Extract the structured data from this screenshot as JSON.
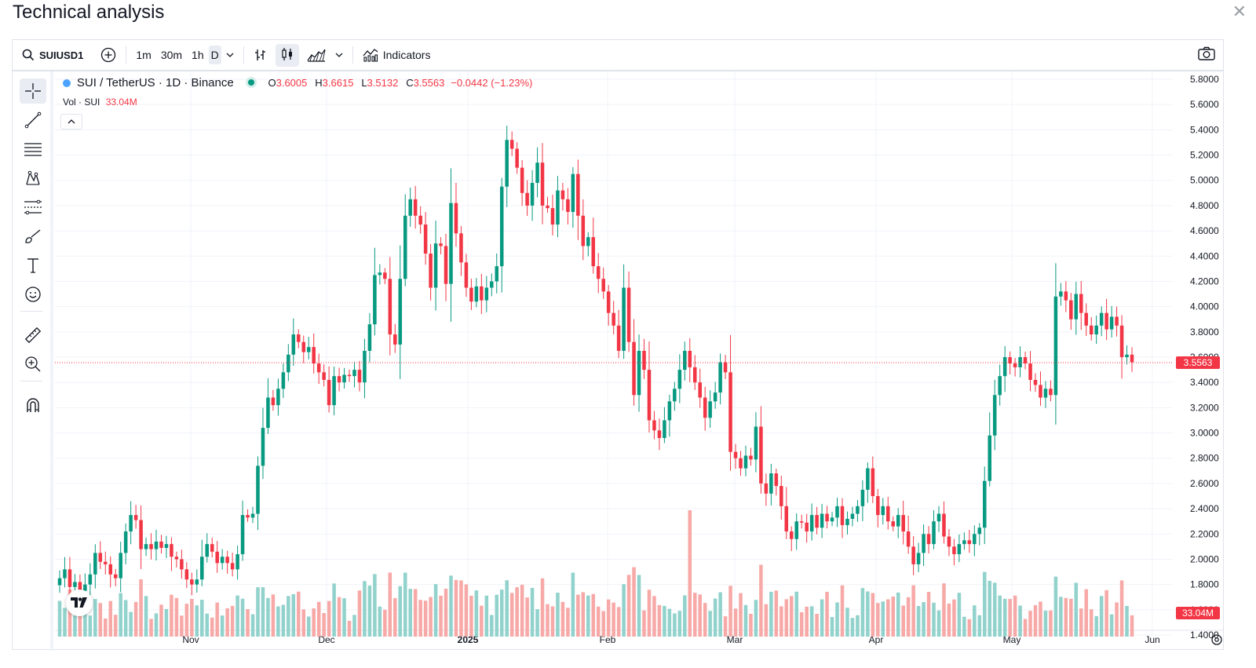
{
  "page": {
    "title": "Technical analysis"
  },
  "toolbar": {
    "symbol": "SUIUSD1",
    "intervals": [
      "1m",
      "30m",
      "1h",
      "D"
    ],
    "indicators_label": "Indicators"
  },
  "legend": {
    "pair": "SUI / TetherUS · 1D · Binance",
    "o_label": "O",
    "open": "3.6005",
    "h_label": "H",
    "high": "3.6615",
    "l_label": "L",
    "low": "3.5132",
    "c_label": "C",
    "close": "3.5563",
    "change": "−0.0442 (−1.23%)",
    "vol_label": "Vol · SUI",
    "vol_value": "33.04M"
  },
  "price_scale": {
    "ticks": [
      "5.8000",
      "5.6000",
      "5.4000",
      "5.2000",
      "5.0000",
      "4.8000",
      "4.6000",
      "4.4000",
      "4.2000",
      "4.0000",
      "3.8000",
      "3.6000",
      "3.4000",
      "3.2000",
      "3.0000",
      "2.8000",
      "2.6000",
      "2.4000",
      "2.2000",
      "2.0000",
      "1.8000",
      "1.6000",
      "1.4000"
    ],
    "current_price_label": "3.5563",
    "current_volume_label": "33.04M"
  },
  "time_scale": {
    "labels": [
      "Nov",
      "Dec",
      "2025",
      "Feb",
      "Mar",
      "Apr",
      "May",
      "Jun"
    ]
  },
  "colors": {
    "up": "#089981",
    "down": "#f23645",
    "up_vol": "#92d2cc",
    "down_vol": "#f7a9a7",
    "grid": "#f0f3fa"
  },
  "chart_data": {
    "type": "candlestick",
    "symbol": "SUIUSD1",
    "interval": "1D",
    "ylim": [
      1.4,
      5.8
    ],
    "closes": [
      1.85,
      1.92,
      1.78,
      1.82,
      1.75,
      1.8,
      1.88,
      2.05,
      1.98,
      1.96,
      1.88,
      1.85,
      2.05,
      2.22,
      2.35,
      2.31,
      2.08,
      2.12,
      2.08,
      2.14,
      2.09,
      2.12,
      2.02,
      2.0,
      1.92,
      1.84,
      1.8,
      1.84,
      2.02,
      2.12,
      2.06,
      1.97,
      2.02,
      1.97,
      1.92,
      2.04,
      2.35,
      2.33,
      2.36,
      2.74,
      3.04,
      3.28,
      3.22,
      3.35,
      3.48,
      3.62,
      3.78,
      3.72,
      3.64,
      3.68,
      3.55,
      3.48,
      3.42,
      3.22,
      3.45,
      3.4,
      3.46,
      3.45,
      3.5,
      3.4,
      3.65,
      3.86,
      4.25,
      4.27,
      4.22,
      3.78,
      3.7,
      4.22,
      4.72,
      4.85,
      4.72,
      4.65,
      4.42,
      4.15,
      4.5,
      4.48,
      4.18,
      4.82,
      4.58,
      4.35,
      4.15,
      4.04,
      4.16,
      4.05,
      4.15,
      4.2,
      4.32,
      4.95,
      5.32,
      5.25,
      5.1,
      4.9,
      4.8,
      4.98,
      5.14,
      4.8,
      4.78,
      4.65,
      4.92,
      4.85,
      4.75,
      5.05,
      4.72,
      4.48,
      4.55,
      4.32,
      4.22,
      4.12,
      3.95,
      3.85,
      3.65,
      4.15,
      3.72,
      3.3,
      3.65,
      3.5,
      3.1,
      3.02,
      2.96,
      3.1,
      3.25,
      3.35,
      3.5,
      3.65,
      3.52,
      3.4,
      3.28,
      3.12,
      3.25,
      3.32,
      3.56,
      3.48,
      2.85,
      2.8,
      2.72,
      2.82,
      2.79,
      3.05,
      2.6,
      2.52,
      2.68,
      2.58,
      2.42,
      2.22,
      2.16,
      2.3,
      2.29,
      2.22,
      2.35,
      2.25,
      2.36,
      2.3,
      2.33,
      2.42,
      2.27,
      2.32,
      2.36,
      2.42,
      2.55,
      2.72,
      2.5,
      2.35,
      2.42,
      2.3,
      2.26,
      2.35,
      2.22,
      2.1,
      1.96,
      2.05,
      2.2,
      2.12,
      2.3,
      2.36,
      2.18,
      2.1,
      2.04,
      2.12,
      2.15,
      2.12,
      2.2,
      2.25,
      2.62,
      2.98,
      3.3,
      3.45,
      3.6,
      3.55,
      3.52,
      3.6,
      3.55,
      3.42,
      3.38,
      3.28,
      3.35,
      3.3,
      4.08,
      4.12,
      4.05,
      3.9,
      4.1,
      3.95,
      3.85,
      3.78,
      3.85,
      3.95,
      3.82,
      3.92,
      3.85,
      3.6,
      3.62,
      3.56
    ],
    "last": {
      "open": 3.6005,
      "high": 3.6615,
      "low": 3.5132,
      "close": 3.5563,
      "change": -0.0442,
      "change_pct": -1.23,
      "volume": "33.04M"
    }
  }
}
